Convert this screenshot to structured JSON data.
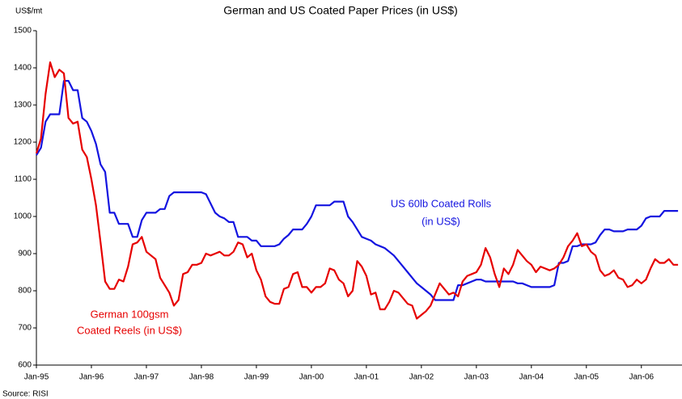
{
  "chart_data": {
    "type": "line",
    "title": "German and US Coated Paper Prices (in US$)",
    "y_axis_label": "US$/mt",
    "source": "Source: RISI",
    "annotations": [
      "US 60lb Coated Rolls",
      "(in US$)",
      "German 100gsm",
      "Coated Reels (in US$)"
    ],
    "categories": [
      "Jan-95",
      null,
      null,
      null,
      null,
      null,
      null,
      null,
      null,
      null,
      null,
      null,
      "Jan-96",
      null,
      null,
      null,
      null,
      null,
      null,
      null,
      null,
      null,
      null,
      null,
      "Jan-97",
      null,
      null,
      null,
      null,
      null,
      null,
      null,
      null,
      null,
      null,
      null,
      "Jan-98",
      null,
      null,
      null,
      null,
      null,
      null,
      null,
      null,
      null,
      null,
      null,
      "Jan-99",
      null,
      null,
      null,
      null,
      null,
      null,
      null,
      null,
      null,
      null,
      null,
      "Jan-00",
      null,
      null,
      null,
      null,
      null,
      null,
      null,
      null,
      null,
      null,
      null,
      "Jan-01",
      null,
      null,
      null,
      null,
      null,
      null,
      null,
      null,
      null,
      null,
      null,
      "Jan-02",
      null,
      null,
      null,
      null,
      null,
      null,
      null,
      null,
      null,
      null,
      null,
      "Jan-03",
      null,
      null,
      null,
      null,
      null,
      null,
      null,
      null,
      null,
      null,
      null,
      "Jan-04",
      null,
      null,
      null,
      null,
      null,
      null,
      null,
      null,
      null,
      null,
      null,
      "Jan-05",
      null,
      null,
      null,
      null,
      null,
      null,
      null,
      null,
      null,
      null,
      null,
      "Jan-06",
      null,
      null,
      null,
      null,
      null,
      null,
      null,
      null
    ],
    "series": [
      {
        "name": "US 60lb Coated Rolls (in US$)",
        "color": "#1414e0",
        "values": [
          1165,
          1185,
          1255,
          1275,
          1275,
          1275,
          1365,
          1365,
          1340,
          1340,
          1265,
          1255,
          1230,
          1195,
          1140,
          1120,
          1010,
          1010,
          980,
          980,
          980,
          945,
          945,
          990,
          1010,
          1010,
          1010,
          1020,
          1020,
          1055,
          1065,
          1065,
          1065,
          1065,
          1065,
          1065,
          1065,
          1060,
          1035,
          1010,
          1000,
          995,
          985,
          985,
          945,
          945,
          945,
          935,
          935,
          920,
          920,
          920,
          920,
          925,
          940,
          950,
          965,
          965,
          965,
          980,
          1000,
          1030,
          1030,
          1030,
          1030,
          1040,
          1040,
          1040,
          1000,
          985,
          965,
          945,
          940,
          935,
          925,
          920,
          915,
          905,
          895,
          880,
          865,
          850,
          835,
          820,
          810,
          800,
          790,
          775,
          775,
          775,
          775,
          775,
          815,
          815,
          820,
          825,
          830,
          830,
          825,
          825,
          825,
          825,
          825,
          825,
          825,
          820,
          820,
          815,
          810,
          810,
          810,
          810,
          810,
          815,
          875,
          875,
          880,
          920,
          920,
          925,
          925,
          925,
          930,
          950,
          965,
          965,
          960,
          960,
          960,
          965,
          965,
          965,
          975,
          995,
          1000,
          1000,
          1000,
          1015,
          1015,
          1015,
          1015
        ]
      },
      {
        "name": "German 100gsm Coated Reels (in US$)",
        "color": "#e60000",
        "values": [
          1170,
          1210,
          1330,
          1415,
          1375,
          1395,
          1385,
          1265,
          1250,
          1255,
          1180,
          1160,
          1100,
          1030,
          930,
          825,
          805,
          805,
          830,
          825,
          865,
          925,
          930,
          945,
          905,
          895,
          885,
          835,
          815,
          795,
          760,
          775,
          845,
          850,
          870,
          870,
          875,
          900,
          895,
          900,
          905,
          895,
          895,
          905,
          930,
          925,
          890,
          900,
          855,
          830,
          785,
          770,
          765,
          765,
          805,
          810,
          845,
          850,
          810,
          810,
          795,
          810,
          810,
          820,
          860,
          855,
          830,
          820,
          785,
          800,
          880,
          865,
          840,
          790,
          795,
          750,
          750,
          770,
          800,
          795,
          780,
          765,
          760,
          725,
          735,
          745,
          760,
          790,
          820,
          805,
          790,
          795,
          785,
          825,
          840,
          845,
          850,
          870,
          915,
          890,
          845,
          810,
          860,
          845,
          870,
          910,
          895,
          880,
          870,
          850,
          865,
          860,
          855,
          860,
          870,
          890,
          920,
          935,
          955,
          920,
          925,
          905,
          895,
          855,
          840,
          845,
          855,
          835,
          830,
          810,
          815,
          830,
          820,
          830,
          860,
          885,
          875,
          875,
          885,
          870,
          870
        ]
      }
    ],
    "ylim": [
      600,
      1500
    ],
    "yticks": [
      600,
      700,
      800,
      900,
      1000,
      1100,
      1200,
      1300,
      1400,
      1500
    ]
  }
}
